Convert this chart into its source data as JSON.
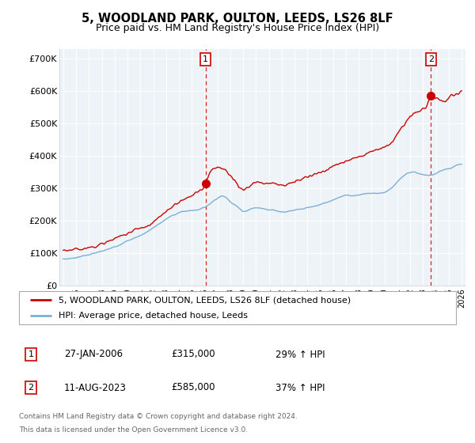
{
  "title": "5, WOODLAND PARK, OULTON, LEEDS, LS26 8LF",
  "subtitle": "Price paid vs. HM Land Registry's House Price Index (HPI)",
  "title_fontsize": 10.5,
  "subtitle_fontsize": 9,
  "ylabel_ticks": [
    "£0",
    "£100K",
    "£200K",
    "£300K",
    "£400K",
    "£500K",
    "£600K",
    "£700K"
  ],
  "ytick_vals": [
    0,
    100000,
    200000,
    300000,
    400000,
    500000,
    600000,
    700000
  ],
  "ylim": [
    0,
    730000
  ],
  "xlim_start": 1994.7,
  "xlim_end": 2026.3,
  "red_line_color": "#cc0000",
  "blue_line_color": "#7ab0d4",
  "chart_bg_color": "#eef3f8",
  "grid_color": "#ffffff",
  "background_color": "#ffffff",
  "legend_label_red": "5, WOODLAND PARK, OULTON, LEEDS, LS26 8LF (detached house)",
  "legend_label_blue": "HPI: Average price, detached house, Leeds",
  "sale1_x": 2006.07,
  "sale1_y": 315000,
  "sale1_label": "1",
  "sale2_x": 2023.62,
  "sale2_y": 585000,
  "sale2_label": "2",
  "vline1_x": 2006.07,
  "vline2_x": 2023.62,
  "footer_line1": "Contains HM Land Registry data © Crown copyright and database right 2024.",
  "footer_line2": "This data is licensed under the Open Government Licence v3.0.",
  "table_data": [
    {
      "num": "1",
      "date": "27-JAN-2006",
      "price": "£315,000",
      "hpi": "29% ↑ HPI"
    },
    {
      "num": "2",
      "date": "11-AUG-2023",
      "price": "£585,000",
      "hpi": "37% ↑ HPI"
    }
  ]
}
